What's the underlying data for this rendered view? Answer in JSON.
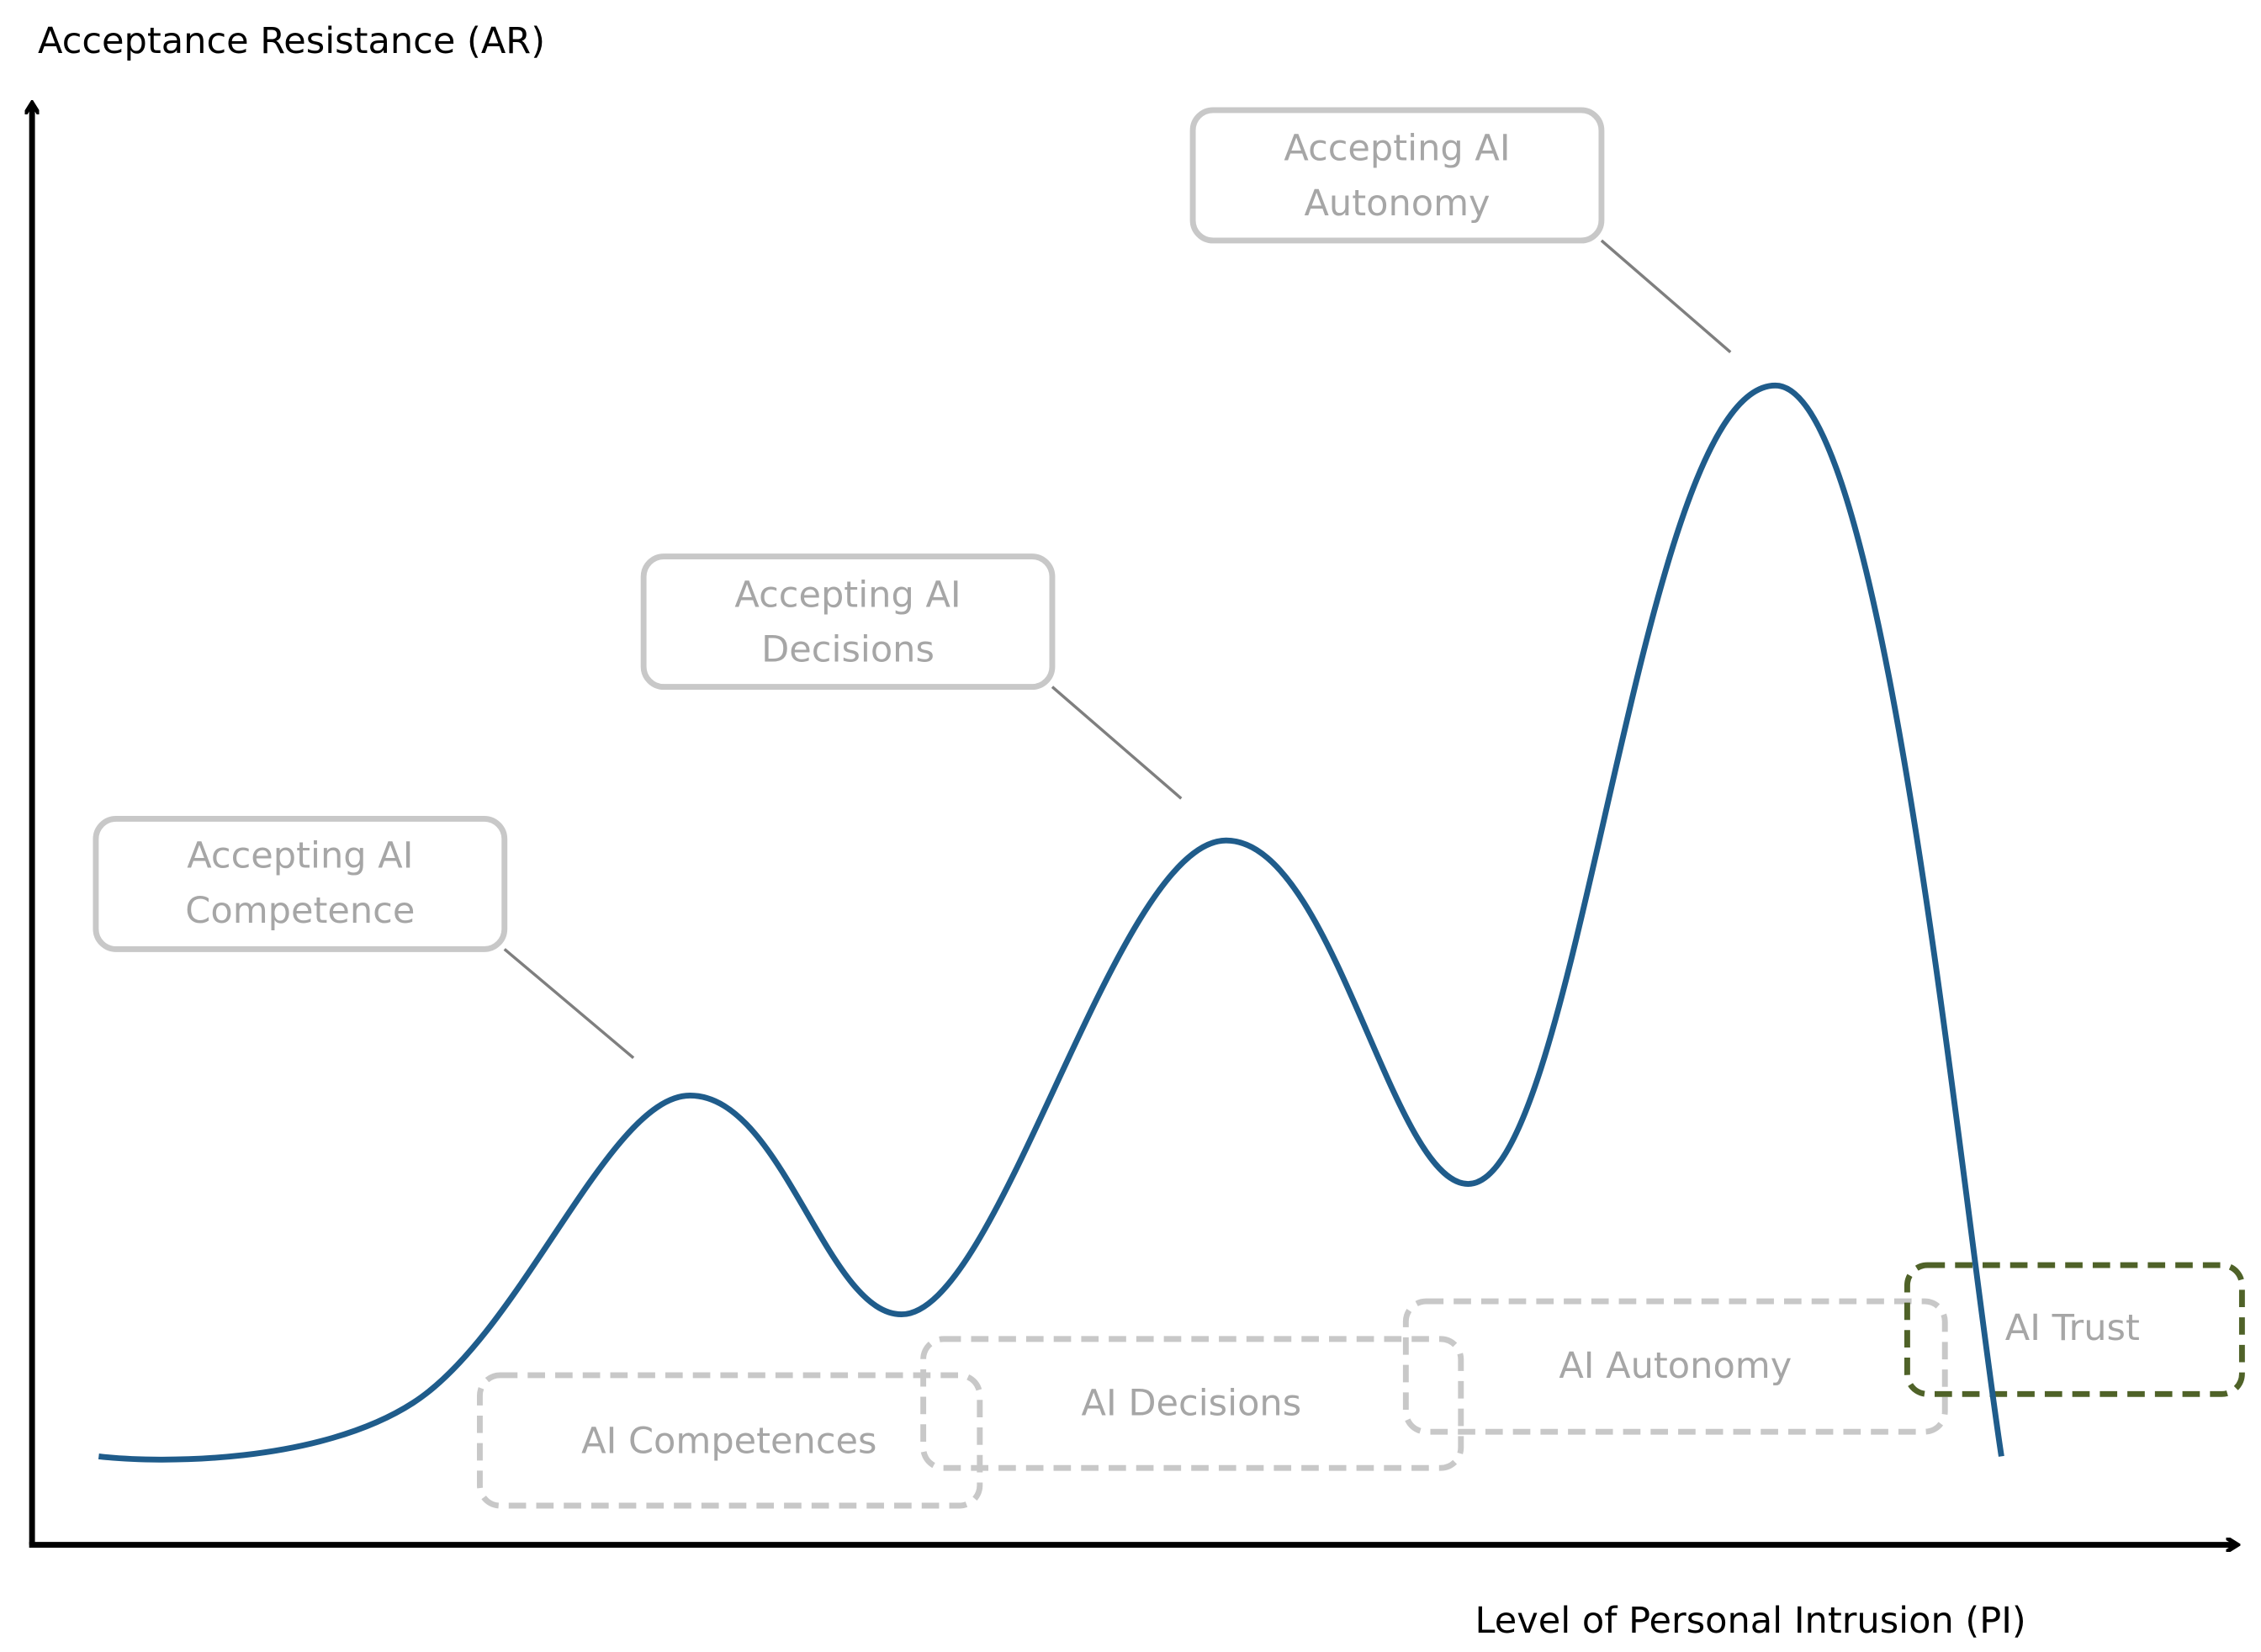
{
  "y_axis_label": "Acceptance Resistance (AR)",
  "x_axis_label": "Level of Personal Intrusion (PI)",
  "callouts": [
    {
      "lines": [
        "Accepting AI",
        "Competence"
      ]
    },
    {
      "lines": [
        "Accepting AI",
        "Decisions"
      ]
    },
    {
      "lines": [
        "Accepting AI",
        "Autonomy"
      ]
    }
  ],
  "stages": [
    "AI Competences",
    "AI Decisions",
    "AI Autonomy",
    "AI Trust"
  ]
}
